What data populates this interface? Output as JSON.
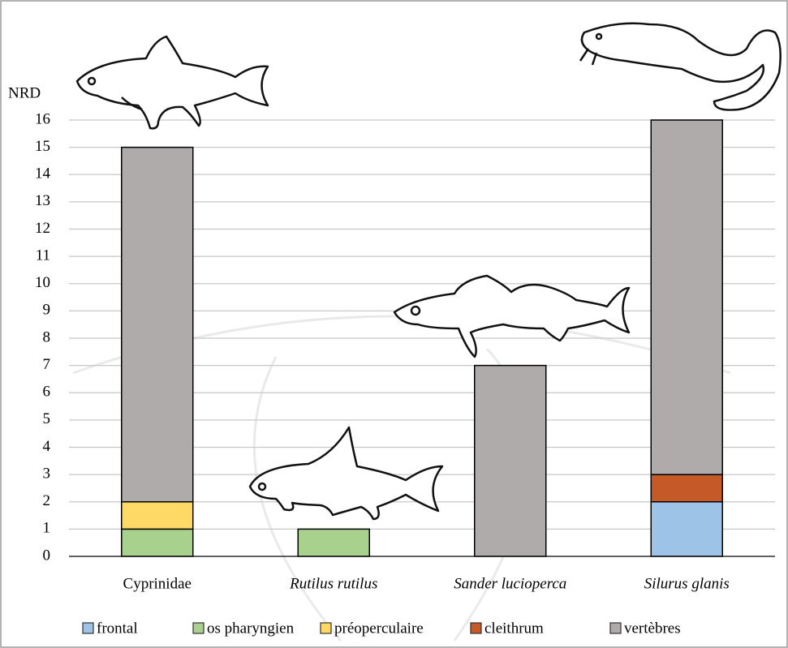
{
  "chart_data": {
    "type": "stacked_bar",
    "y_label": "NRD",
    "categories": [
      "Cyprinidae",
      "Rutilus rutilus",
      "Sander lucioperca",
      "Silurus glanis"
    ],
    "series": [
      {
        "name": "frontal",
        "color": "#9dc3e6",
        "values": [
          0,
          0,
          0,
          2
        ]
      },
      {
        "name": "os pharyngien",
        "color": "#a9d18e",
        "values": [
          1,
          1,
          0,
          0
        ]
      },
      {
        "name": "préoperculaire",
        "color": "#ffd966",
        "values": [
          1,
          0,
          0,
          0
        ]
      },
      {
        "name": "cleithrum",
        "color": "#c55a28",
        "values": [
          0,
          0,
          0,
          1
        ]
      },
      {
        "name": "vertèbres",
        "color": "#afabab",
        "values": [
          13,
          0,
          7,
          13
        ]
      }
    ],
    "ylim": [
      0,
      16
    ],
    "yticks": [
      0,
      1,
      2,
      3,
      4,
      5,
      6,
      7,
      8,
      9,
      10,
      11,
      12,
      13,
      14,
      15,
      16
    ],
    "grid": true
  }
}
